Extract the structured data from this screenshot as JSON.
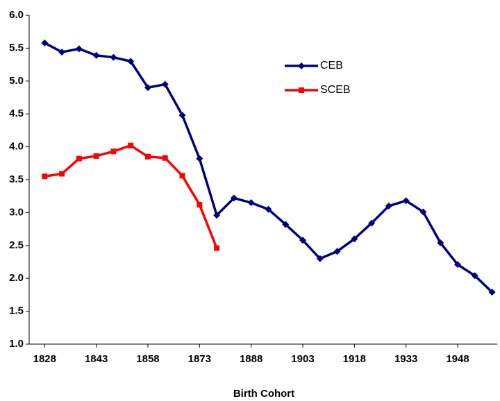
{
  "chart_data": {
    "type": "line",
    "x_label": "Birth Cohort",
    "x": [
      1828,
      1833,
      1838,
      1843,
      1848,
      1853,
      1858,
      1863,
      1868,
      1873,
      1878,
      1883,
      1888,
      1893,
      1898,
      1903,
      1908,
      1913,
      1918,
      1923,
      1928,
      1933,
      1938,
      1943,
      1948,
      1953,
      1958
    ],
    "series": [
      {
        "name": "CEB",
        "color": "#000080",
        "marker": "diamond",
        "values": [
          5.58,
          5.44,
          5.49,
          5.39,
          5.36,
          5.3,
          4.9,
          4.95,
          4.48,
          3.82,
          2.96,
          3.22,
          3.15,
          3.05,
          2.82,
          2.58,
          2.3,
          2.41,
          2.6,
          2.84,
          3.1,
          3.18,
          3.01,
          2.54,
          2.21,
          2.04,
          1.79
        ]
      },
      {
        "name": "SCEB",
        "color": "#ff0000",
        "marker": "square",
        "values": [
          3.55,
          3.59,
          3.82,
          3.86,
          3.93,
          4.02,
          3.85,
          3.83,
          3.56,
          3.12,
          2.46,
          null,
          null,
          null,
          null,
          null,
          null,
          null,
          null,
          null,
          null,
          null,
          null,
          null,
          null,
          null,
          null
        ]
      }
    ],
    "xlim": [
      1823.5,
      1959.5
    ],
    "xticks": [
      1828,
      1843,
      1858,
      1873,
      1888,
      1903,
      1918,
      1933,
      1948
    ],
    "ylim": [
      1.0,
      6.0
    ],
    "yticks": [
      {
        "value": 1,
        "label": "1.0"
      },
      1.5,
      {
        "value": 2,
        "label": "2.0"
      },
      2.5,
      {
        "value": 3,
        "label": "3.0"
      },
      3.5,
      {
        "value": 4,
        "label": "4.0"
      },
      4.5,
      {
        "value": 5,
        "label": "5.0"
      },
      5.5,
      {
        "value": 6,
        "label": "6.0"
      }
    ],
    "grid": false
  }
}
